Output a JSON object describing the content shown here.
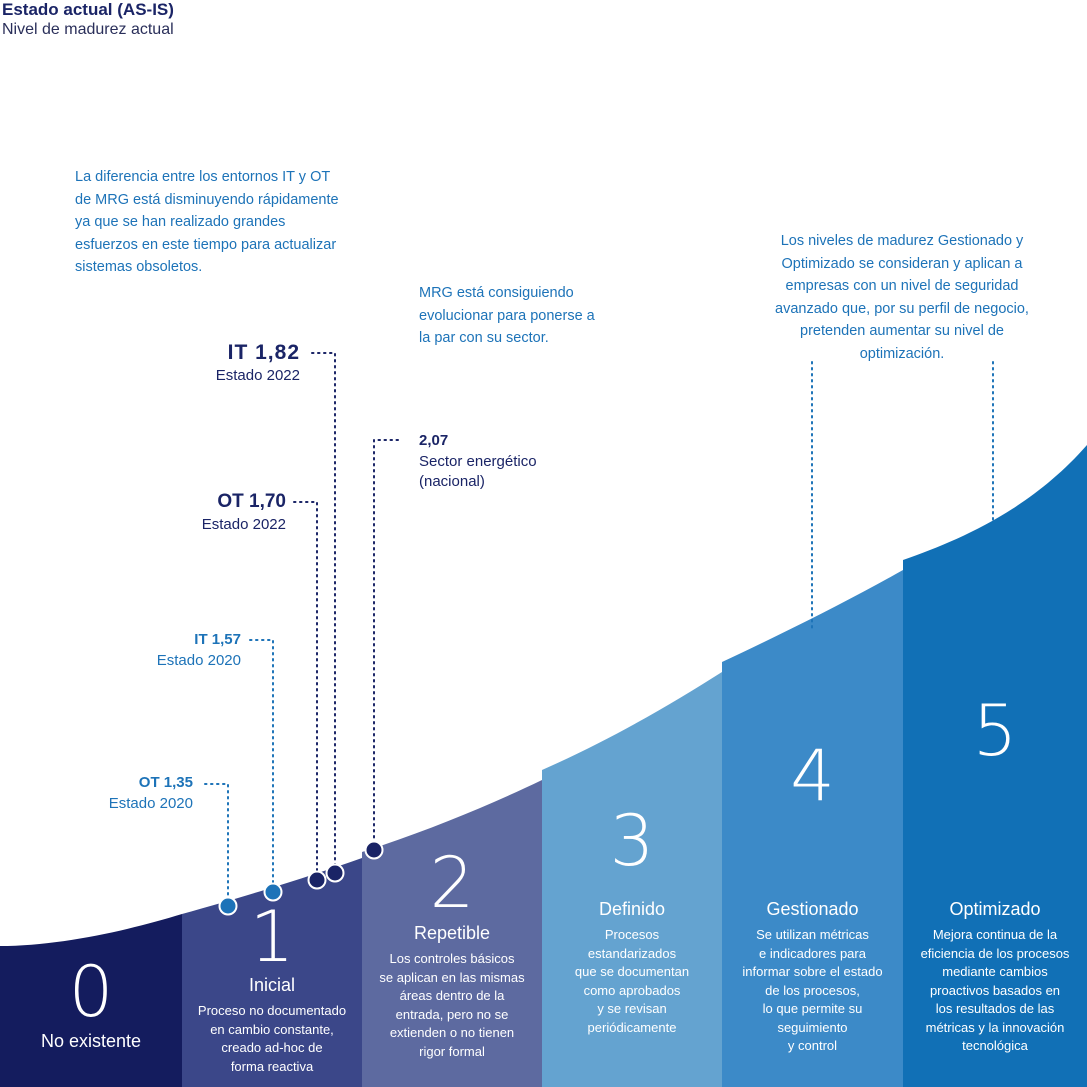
{
  "header": {
    "title": "Estado actual (AS-IS)",
    "subtitle": "Nivel de madurez actual"
  },
  "notes": {
    "left": "La diferencia entre los entornos IT y OT de MRG está disminuyendo rápidamente ya que se han realizado grandes esfuerzos en este tiempo para actualizar sistemas obsoletos.",
    "middle": "MRG está consiguiendo evolucionar para ponerse a la par con su sector.",
    "right": "Los niveles de madurez Gestionado y Optimizado se consideran y aplican a empresas con un nivel de seguridad avanzado que, por su perfil de negocio, pretenden aumentar su nivel de optimización."
  },
  "markers": [
    {
      "key": "it2022",
      "label": "IT  1,82",
      "sub": "Estado 2022",
      "value": 1.82
    },
    {
      "key": "ot2022",
      "label": "OT  1,70",
      "sub": "Estado 2022",
      "value": 1.7
    },
    {
      "key": "it2020",
      "label": "IT  1,57",
      "sub": "Estado 2020",
      "value": 1.57
    },
    {
      "key": "ot2020",
      "label": "OT  1,35",
      "sub": "Estado 2020",
      "value": 1.35
    },
    {
      "key": "sector",
      "label": "2,07",
      "sub": "Sector energético",
      "sub2": "(nacional)",
      "value": 2.07
    }
  ],
  "levels": [
    {
      "num": "0",
      "name": "No existente",
      "desc": [],
      "color": "#141c5e"
    },
    {
      "num": "1",
      "name": "Inicial",
      "desc": [
        "Proceso no documentado",
        "en cambio constante,",
        "creado ad-hoc de",
        "forma reactiva"
      ],
      "color": "#3b4789"
    },
    {
      "num": "2",
      "name": "Repetible",
      "desc": [
        "Los controles básicos",
        "se aplican en las mismas",
        "áreas dentro de la",
        "entrada, pero no se",
        "extienden o no tienen",
        "rigor formal"
      ],
      "color": "#5d6aa0"
    },
    {
      "num": "3",
      "name": "Definido",
      "desc": [
        "Procesos",
        "estandarizados",
        "que se documentan",
        "como aprobados",
        "y se revisan",
        "periódicamente"
      ],
      "color": "#64a3d0"
    },
    {
      "num": "4",
      "name": "Gestionado",
      "desc": [
        "Se utilizan métricas",
        "e indicadores para",
        "informar sobre el estado",
        "de los procesos,",
        "lo que permite su",
        "seguimiento",
        "y control"
      ],
      "color": "#3c8ac8"
    },
    {
      "num": "5",
      "name": "Optimizado",
      "desc": [
        "Mejora continua de la",
        "eficiencia de los procesos",
        "mediante cambios",
        "proactivos basados en",
        "los resultados de las",
        "métricas y la innovación",
        "tecnológica"
      ],
      "color": "#1170b6"
    }
  ],
  "colors": {
    "dark_marker": "#1a2466",
    "light_marker": "#1d73b8"
  }
}
